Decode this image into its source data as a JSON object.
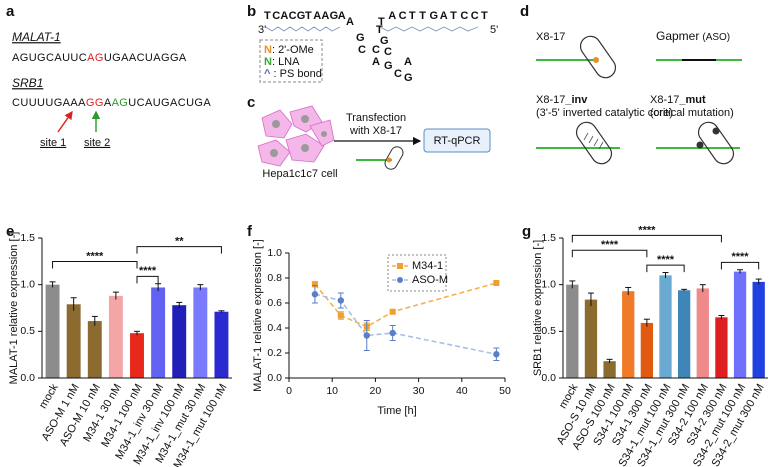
{
  "panel_a": {
    "label": "a",
    "gene1": "MALAT-1",
    "seq1": [
      "AGUGCAUUC",
      "AG",
      "UGAACUAGGA"
    ],
    "gene2": "SRB1",
    "seq2": [
      "CUUUUGAAA",
      "GG",
      "A",
      "AG",
      "UCAUGACUGA"
    ],
    "site1": "site 1",
    "site2": "site 2"
  },
  "panel_b": {
    "label": "b",
    "end3": "3'",
    "end5": "5'",
    "arm_left": [
      "T",
      "C",
      "A",
      "C",
      "G",
      "T",
      "A",
      "A",
      "G",
      "A",
      "A"
    ],
    "loop": [
      "G",
      "C",
      "T",
      "G",
      "C",
      "C",
      "A",
      "G",
      "C",
      "A",
      "G"
    ],
    "arm_right": [
      "T",
      "A",
      "C",
      "T",
      "T",
      "G",
      "A",
      "T",
      "C",
      "C",
      "T"
    ],
    "legend": [
      {
        "symbol": "N",
        "text": ": 2'-OMe"
      },
      {
        "symbol": "N",
        "text": ": LNA"
      },
      {
        "symbol": "^",
        "text": " : PS bond"
      }
    ]
  },
  "panel_c": {
    "label": "c",
    "cell": "Hepa1c1c7 cell",
    "step1": "Transfection",
    "step2": "with X8-17",
    "assay": "RT-qPCR"
  },
  "panel_d": {
    "label": "d",
    "constructs": [
      {
        "name": "X8-17"
      },
      {
        "name": "Gapmer",
        "note": "(ASO)"
      },
      {
        "name": "X8-17",
        "suffix": "_inv",
        "note": "(3'-5' inverted catalytic core)"
      },
      {
        "name": "X8-17",
        "suffix": "_mut",
        "note": "(critical mutation)"
      }
    ]
  },
  "chart_data": [
    {
      "type": "bar",
      "panel_label": "e",
      "ylabel": "MALAT-1 relative expression [-]",
      "categories": [
        "mock",
        "ASO-M 1 nM",
        "ASO-M 10 nM",
        "M34-1 30 nM",
        "M34-1 100 nM",
        "M34-1_inv 30 nM",
        "M34-1_inv 100 nM",
        "M34-1_mut 30 nM",
        "M34-1_mut 100 nM"
      ],
      "values": [
        1.0,
        0.79,
        0.61,
        0.88,
        0.48,
        0.97,
        0.78,
        0.97,
        0.71
      ],
      "errors": [
        0.03,
        0.07,
        0.05,
        0.04,
        0.02,
        0.04,
        0.03,
        0.03,
        0.01
      ],
      "colors": [
        "#8c8c8c",
        "#8b6b30",
        "#8b6b30",
        "#f4a6a6",
        "#e8281a",
        "#6262f2",
        "#2020b8",
        "#7a7aff",
        "#2a2ad0"
      ],
      "ylim": [
        0,
        1.5
      ],
      "yticks": [
        {
          "value": 0,
          "label": "0.0"
        },
        0.5,
        {
          "value": 1,
          "label": "1.0"
        },
        1.5
      ],
      "annotations": [
        {
          "text": "****",
          "from": "mock",
          "to": "M34-1 100 nM"
        },
        {
          "text": "****",
          "from": "M34-1 100 nM",
          "to": "M34-1_inv 30 nM"
        },
        {
          "text": "**",
          "from": "M34-1 100 nM",
          "to": "M34-1_mut 100 nM"
        }
      ]
    },
    {
      "type": "line",
      "panel_label": "f",
      "ylabel": "MALAT-1 relative expression [-]",
      "xlabel": "Time [h]",
      "x": [
        6,
        12,
        18,
        24,
        48
      ],
      "series": [
        {
          "name": "M34-1",
          "color": "#f0a030",
          "marker": "square",
          "values": [
            0.75,
            0.5,
            0.41,
            0.53,
            0.76
          ],
          "errors": [
            0.02,
            0.03,
            0.03,
            0.01,
            0.01
          ]
        },
        {
          "name": "ASO-M",
          "color": "#5a7ec8",
          "marker": "circle",
          "values": [
            0.67,
            0.62,
            0.34,
            0.36,
            0.19
          ],
          "errors": [
            0.07,
            0.06,
            0.12,
            0.06,
            0.05
          ]
        }
      ],
      "xlim": [
        0,
        50
      ],
      "xticks": [
        0,
        10,
        20,
        30,
        40,
        50
      ],
      "ylim": [
        0,
        1
      ],
      "yticks": [
        {
          "value": 0,
          "label": "0.0"
        },
        0.2,
        0.4,
        0.6,
        0.8,
        {
          "value": 1,
          "label": "1.0"
        }
      ],
      "legend": "upper center"
    },
    {
      "type": "bar",
      "panel_label": "g",
      "ylabel": "SRB1 relative expression [-]",
      "categories": [
        "mock",
        "ASO-S 10 nM",
        "ASO-S 100 nM",
        "S34-1 100 nM",
        "S34-1 300 nM",
        "S34-1_mut 100 nM",
        "S34-1_mut 300 nM",
        "S34-2 100 nM",
        "S34-2 300 nM",
        "S34-2_mut 100 nM",
        "S34-2_mut 300 nM"
      ],
      "values": [
        1.0,
        0.84,
        0.18,
        0.93,
        0.59,
        1.1,
        0.94,
        0.96,
        0.65,
        1.14,
        1.03
      ],
      "errors": [
        0.04,
        0.07,
        0.02,
        0.04,
        0.04,
        0.03,
        0.01,
        0.04,
        0.02,
        0.02,
        0.03
      ],
      "colors": [
        "#8c8c8c",
        "#8b6b30",
        "#8b6b30",
        "#f07a28",
        "#e05a10",
        "#6aaad0",
        "#3f86b8",
        "#f08a8a",
        "#e02020",
        "#7070ff",
        "#2040e0"
      ],
      "ylim": [
        0,
        1.5
      ],
      "yticks": [
        {
          "value": 0,
          "label": "0.0"
        },
        0.5,
        {
          "value": 1,
          "label": "1.0"
        },
        1.5
      ],
      "annotations": [
        {
          "text": "****",
          "from": "mock",
          "to": "S34-2 300 nM"
        },
        {
          "text": "****",
          "from": "mock",
          "to": "S34-1 300 nM"
        },
        {
          "text": "****",
          "from": "S34-1 300 nM",
          "to": "S34-1_mut 300 nM"
        },
        {
          "text": "****",
          "from": "S34-2 300 nM",
          "to": "S34-2_mut 300 nM"
        }
      ]
    }
  ]
}
